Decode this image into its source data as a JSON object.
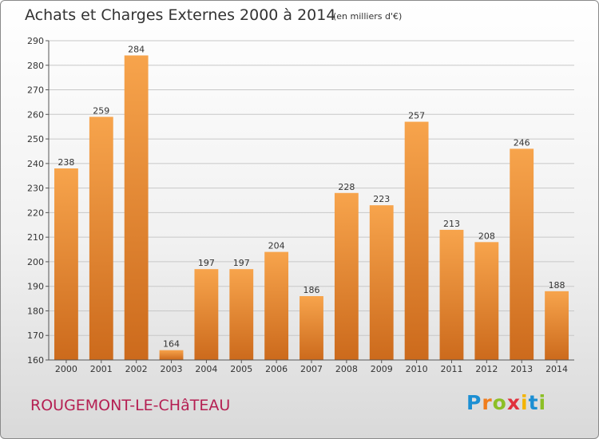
{
  "header": {
    "title": "Achats et Charges Externes 2000 à 2014",
    "unit": "(en milliers d'€)"
  },
  "footer": {
    "place": "ROUGEMONT-LE-CHâTEAU",
    "brand": "Proxiti"
  },
  "colors": {
    "bar_top": "#f7a44c",
    "bar_bottom": "#cc6a1c",
    "grid": "#c8c8c8",
    "axis": "#555555",
    "label": "#333333",
    "place": "#b51f52"
  },
  "chart_data": {
    "type": "bar",
    "title": "Achats et Charges Externes 2000 à 2014",
    "subtitle": "(en milliers d'€)",
    "xlabel": "",
    "ylabel": "",
    "categories": [
      "2000",
      "2001",
      "2002",
      "2003",
      "2004",
      "2005",
      "2006",
      "2007",
      "2008",
      "2009",
      "2010",
      "2011",
      "2012",
      "2013",
      "2014"
    ],
    "values": [
      238,
      259,
      284,
      164,
      197,
      197,
      204,
      186,
      228,
      223,
      257,
      213,
      208,
      246,
      188
    ],
    "ylim": [
      160,
      290
    ],
    "yticks": [
      160,
      170,
      180,
      190,
      200,
      210,
      220,
      230,
      240,
      250,
      260,
      270,
      280,
      290
    ],
    "grid": true,
    "data_labels": true
  }
}
